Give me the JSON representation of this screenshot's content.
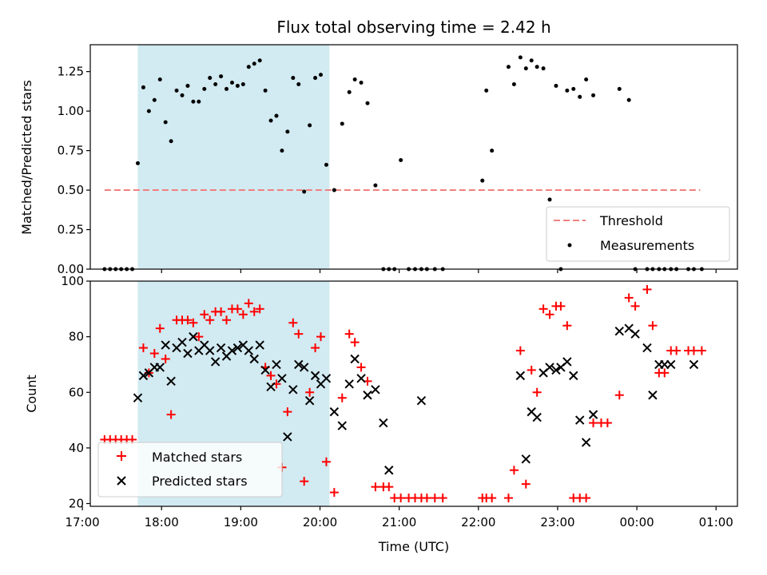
{
  "chart_data": [
    {
      "type": "scatter",
      "title": "Flux total observing time = 2.42 h",
      "xlabel": "",
      "ylabel": "Matched/Predicted stars",
      "xlim": [
        17.1,
        25.27
      ],
      "ylim": [
        0,
        1.42
      ],
      "yticks": [
        0.0,
        0.25,
        0.5,
        0.75,
        1.0,
        1.25
      ],
      "ytick_labels": [
        "0.00",
        "0.25",
        "0.50",
        "0.75",
        "1.00",
        "1.25"
      ],
      "xticks": [
        17,
        18,
        19,
        20,
        21,
        22,
        23,
        24,
        25
      ],
      "shaded_span": [
        17.7,
        20.12
      ],
      "shaded_color": "#add8e6",
      "legend_position": "lower right",
      "threshold": {
        "name": "Threshold",
        "value": 0.5,
        "x_range": [
          17.28,
          24.8
        ],
        "color": "#f08080"
      },
      "series": [
        {
          "name": "Measurements",
          "color": "#000000",
          "marker": "dot",
          "x": [
            17.28,
            17.35,
            17.42,
            17.49,
            17.56,
            17.63,
            17.7,
            17.77,
            17.84,
            17.91,
            17.98,
            18.05,
            18.12,
            18.19,
            18.26,
            18.33,
            18.4,
            18.47,
            18.54,
            18.61,
            18.68,
            18.75,
            18.82,
            18.89,
            18.96,
            19.03,
            19.1,
            19.17,
            19.24,
            19.31,
            19.38,
            19.45,
            19.52,
            19.59,
            19.66,
            19.73,
            19.8,
            19.87,
            19.94,
            20.01,
            20.08,
            20.18,
            20.28,
            20.37,
            20.44,
            20.52,
            20.6,
            20.7,
            20.8,
            20.87,
            20.94,
            21.02,
            21.12,
            21.2,
            21.28,
            21.35,
            21.45,
            21.55,
            22.05,
            22.1,
            22.17,
            22.38,
            22.45,
            22.53,
            22.6,
            22.67,
            22.74,
            22.82,
            22.9,
            22.98,
            23.04,
            23.12,
            23.2,
            23.28,
            23.36,
            23.45,
            23.78,
            23.9,
            23.98,
            24.13,
            24.2,
            24.28,
            24.35,
            24.43,
            24.5,
            24.65,
            24.72,
            24.82
          ],
          "y": [
            0,
            0,
            0,
            0,
            0,
            0,
            0.67,
            1.15,
            1.0,
            1.07,
            1.2,
            0.93,
            0.81,
            1.13,
            1.1,
            1.16,
            1.06,
            1.06,
            1.14,
            1.21,
            1.17,
            1.22,
            1.14,
            1.18,
            1.16,
            1.17,
            1.28,
            1.3,
            1.32,
            1.13,
            0.94,
            0.97,
            0.75,
            0.87,
            1.21,
            1.17,
            0.49,
            0.91,
            1.21,
            1.23,
            0.66,
            0.5,
            0.92,
            1.12,
            1.2,
            1.18,
            1.05,
            0.53,
            0,
            0,
            0,
            0.69,
            0,
            0,
            0,
            0,
            0,
            0,
            0.56,
            1.13,
            0.75,
            1.28,
            1.17,
            1.34,
            1.27,
            1.32,
            1.28,
            1.27,
            0.44,
            1.16,
            0,
            1.13,
            1.14,
            1.09,
            1.2,
            1.1,
            1.14,
            1.07,
            0,
            0,
            0,
            0,
            0,
            0,
            0,
            0,
            0,
            0
          ]
        }
      ]
    },
    {
      "type": "scatter",
      "title": "",
      "xlabel": "Time (UTC)",
      "ylabel": "Count",
      "xlim": [
        17.1,
        25.27
      ],
      "ylim": [
        19,
        100
      ],
      "yticks": [
        20,
        40,
        60,
        80,
        100
      ],
      "ytick_labels": [
        "20",
        "40",
        "60",
        "80",
        "100"
      ],
      "xticks": [
        17,
        18,
        19,
        20,
        21,
        22,
        23,
        24,
        25
      ],
      "xtick_labels": [
        "17:00",
        "18:00",
        "19:00",
        "20:00",
        "21:00",
        "22:00",
        "23:00",
        "00:00",
        "01:00"
      ],
      "shaded_span": [
        17.7,
        20.12
      ],
      "shaded_color": "#add8e6",
      "legend_position": "lower left",
      "series": [
        {
          "name": "Matched stars",
          "color": "#ff0000",
          "marker": "plus",
          "x": [
            17.28,
            17.35,
            17.42,
            17.49,
            17.56,
            17.63,
            17.77,
            17.84,
            17.91,
            17.98,
            18.05,
            18.12,
            18.19,
            18.26,
            18.33,
            18.4,
            18.47,
            18.54,
            18.61,
            18.68,
            18.75,
            18.82,
            18.89,
            18.96,
            19.03,
            19.1,
            19.17,
            19.24,
            19.31,
            19.38,
            19.45,
            19.52,
            19.59,
            19.66,
            19.73,
            19.8,
            19.87,
            19.94,
            20.01,
            20.08,
            20.18,
            20.28,
            20.37,
            20.44,
            20.52,
            20.6,
            20.7,
            20.8,
            20.87,
            20.94,
            21.02,
            21.12,
            21.2,
            21.28,
            21.35,
            21.45,
            21.55,
            22.05,
            22.1,
            22.17,
            22.38,
            22.45,
            22.53,
            22.6,
            22.67,
            22.74,
            22.82,
            22.9,
            22.98,
            23.04,
            23.12,
            23.2,
            23.28,
            23.36,
            23.45,
            23.55,
            23.63,
            23.78,
            23.9,
            23.98,
            24.13,
            24.2,
            24.28,
            24.35,
            24.43,
            24.5,
            24.65,
            24.72,
            24.82
          ],
          "y": [
            43,
            43,
            43,
            43,
            43,
            43,
            76,
            67,
            74,
            83,
            72,
            52,
            86,
            86,
            86,
            85,
            80,
            88,
            86,
            89,
            89,
            86,
            90,
            90,
            88,
            92,
            89,
            90,
            69,
            66,
            63,
            33,
            53,
            85,
            81,
            28,
            60,
            76,
            80,
            35,
            24,
            58,
            81,
            78,
            69,
            64,
            26,
            26,
            26,
            22,
            22,
            22,
            22,
            22,
            22,
            22,
            22,
            22,
            22,
            22,
            22,
            32,
            75,
            27,
            68,
            60,
            90,
            88,
            91,
            91,
            84,
            22,
            22,
            22,
            49,
            49,
            49,
            59,
            94,
            91,
            97,
            84,
            67,
            67,
            75,
            75,
            75,
            75,
            75
          ]
        },
        {
          "name": "Predicted stars",
          "color": "#000000",
          "marker": "x",
          "x": [
            17.7,
            17.77,
            17.84,
            17.91,
            17.98,
            18.05,
            18.12,
            18.19,
            18.26,
            18.33,
            18.4,
            18.47,
            18.54,
            18.61,
            18.68,
            18.75,
            18.82,
            18.89,
            18.96,
            19.03,
            19.1,
            19.17,
            19.24,
            19.31,
            19.38,
            19.45,
            19.52,
            19.59,
            19.66,
            19.73,
            19.8,
            19.87,
            19.94,
            20.01,
            20.08,
            20.18,
            20.28,
            20.37,
            20.44,
            20.52,
            20.6,
            20.7,
            20.8,
            20.87,
            21.28,
            22.53,
            22.6,
            22.67,
            22.74,
            22.82,
            22.9,
            22.98,
            23.04,
            23.12,
            23.2,
            23.28,
            23.36,
            23.45,
            23.78,
            23.9,
            23.98,
            24.13,
            24.2,
            24.28,
            24.35,
            24.43,
            24.72
          ],
          "y": [
            58,
            66,
            67,
            69,
            69,
            77,
            64,
            76,
            78,
            74,
            80,
            75,
            77,
            75,
            71,
            76,
            73,
            75,
            76,
            77,
            75,
            72,
            77,
            68,
            62,
            70,
            65,
            44,
            61,
            70,
            69,
            57,
            66,
            63,
            65,
            53,
            48,
            63,
            72,
            65,
            59,
            61,
            49,
            32,
            57,
            66,
            36,
            53,
            51,
            67,
            69,
            68,
            69,
            71,
            66,
            50,
            42,
            52,
            82,
            83,
            81,
            76,
            59,
            70,
            70,
            70,
            70
          ]
        }
      ]
    }
  ]
}
